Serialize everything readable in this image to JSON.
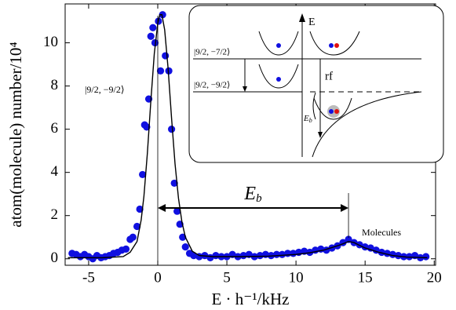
{
  "chart_data": {
    "type": "scatter",
    "xlabel": "E · h⁻¹/kHz",
    "ylabel": "atom(molecule) number/10⁴",
    "xlim": [
      -6.7,
      20.1
    ],
    "ylim": [
      -0.3,
      11.8
    ],
    "xticks": [
      -5,
      0,
      5,
      10,
      15,
      20
    ],
    "yticks": [
      0,
      2,
      4,
      6,
      8,
      10
    ],
    "series": [
      {
        "type": "scatter",
        "color": "#1010e0",
        "x": [
          -6.2,
          -5.9,
          -5.6,
          -5.3,
          -5.0,
          -4.7,
          -4.4,
          -4.1,
          -3.8,
          -3.5,
          -3.2,
          -2.9,
          -2.6,
          -2.3,
          -2.0,
          -1.8,
          -1.5,
          -1.3,
          -1.1,
          -0.95,
          -0.8,
          -0.65,
          -0.5,
          -0.35,
          -0.2,
          0.05,
          0.2,
          0.35,
          0.55,
          0.8,
          1.0,
          1.2,
          1.4,
          1.6,
          1.8,
          2.0,
          2.3,
          2.6,
          3.0,
          3.4,
          3.8,
          4.2,
          4.6,
          5.0,
          5.4,
          5.8,
          6.2,
          6.6,
          7.0,
          7.4,
          7.8,
          8.2,
          8.6,
          9.0,
          9.4,
          9.8,
          10.2,
          10.6,
          11.0,
          11.4,
          11.8,
          12.2,
          12.6,
          13.0,
          13.4,
          13.8,
          14.2,
          14.6,
          15.0,
          15.4,
          15.8,
          16.2,
          16.6,
          17.0,
          17.4,
          17.8,
          18.2,
          18.6,
          19.0,
          19.4
        ],
        "values": [
          0.25,
          0.2,
          0.1,
          0.2,
          0.1,
          0.0,
          0.15,
          0.05,
          0.1,
          0.15,
          0.25,
          0.3,
          0.4,
          0.45,
          0.9,
          1.0,
          1.5,
          2.3,
          3.9,
          6.2,
          6.1,
          7.4,
          10.3,
          10.7,
          10.0,
          11.0,
          8.7,
          11.3,
          9.4,
          8.7,
          6.0,
          3.5,
          2.2,
          1.6,
          1.0,
          0.55,
          0.25,
          0.15,
          0.1,
          0.15,
          0.05,
          0.15,
          0.1,
          0.1,
          0.2,
          0.1,
          0.15,
          0.2,
          0.1,
          0.15,
          0.2,
          0.15,
          0.2,
          0.2,
          0.25,
          0.25,
          0.3,
          0.35,
          0.3,
          0.4,
          0.45,
          0.4,
          0.5,
          0.6,
          0.75,
          0.9,
          0.75,
          0.65,
          0.55,
          0.5,
          0.4,
          0.3,
          0.25,
          0.2,
          0.15,
          0.1,
          0.1,
          0.15,
          0.05,
          0.1
        ]
      },
      {
        "type": "line",
        "color": "#000000",
        "x": [
          -6.5,
          -4,
          -2.5,
          -2,
          -1.5,
          -1.2,
          -1,
          -0.75,
          -0.5,
          -0.25,
          0,
          0.15,
          0.3,
          0.5,
          0.75,
          1,
          1.25,
          1.5,
          1.75,
          2,
          2.5,
          3,
          4,
          6,
          8,
          10,
          11,
          12,
          12.5,
          13,
          13.5,
          13.8,
          14.2,
          14.6,
          15,
          16,
          17,
          18,
          19.5
        ],
        "values": [
          0.05,
          0.05,
          0.1,
          0.3,
          0.8,
          1.8,
          2.9,
          4.9,
          7.3,
          9.5,
          10.9,
          11.3,
          11.3,
          10.6,
          8.8,
          6.5,
          4.4,
          2.8,
          1.7,
          1.0,
          0.35,
          0.15,
          0.1,
          0.1,
          0.12,
          0.2,
          0.28,
          0.4,
          0.5,
          0.6,
          0.72,
          0.8,
          0.75,
          0.62,
          0.5,
          0.3,
          0.15,
          0.08,
          0.05
        ]
      }
    ],
    "binding_energy": {
      "from": 0,
      "to": 13.8,
      "label": {
        "main": "E",
        "sub": "b"
      }
    },
    "annotations": {
      "atom_peak": "|9/2, −9/2⟩",
      "molecule_peak": "Molecules"
    },
    "inset": {
      "energy_axis": "E",
      "upper_state": "|9/2, −7/2⟩",
      "lower_state": "|9/2, −9/2⟩",
      "transition": "rf",
      "binding": {
        "main": "E",
        "sub": "b"
      }
    }
  }
}
